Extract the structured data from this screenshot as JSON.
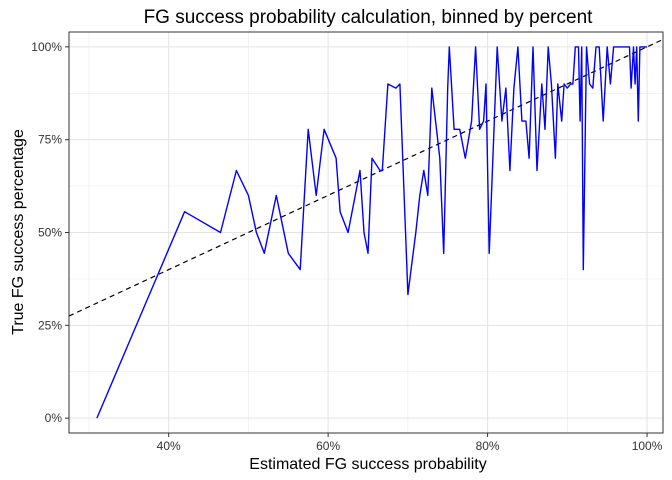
{
  "chart_data": {
    "type": "line",
    "title": "FG success probability calculation, binned by percent",
    "xlabel": "Estimated FG success probability",
    "ylabel": "True FG success percentage",
    "xlim": [
      0.275,
      1.02
    ],
    "ylim": [
      -0.04,
      1.04
    ],
    "x_ticks": [
      0.4,
      0.6,
      0.8,
      1.0
    ],
    "x_tick_labels": [
      "40%",
      "60%",
      "80%",
      "100%"
    ],
    "y_ticks": [
      0,
      0.25,
      0.5,
      0.75,
      1.0
    ],
    "y_tick_labels": [
      "0%",
      "25%",
      "50%",
      "75%",
      "100%"
    ],
    "grid": true,
    "reference_line": {
      "style": "dashed",
      "color": "#000000",
      "from": [
        0.275,
        0.275
      ],
      "to": [
        1.02,
        1.02
      ]
    },
    "series": [
      {
        "color": "#0000ff",
        "points": [
          [
            0.31,
            0.0
          ],
          [
            0.42,
            0.556
          ],
          [
            0.465,
            0.5
          ],
          [
            0.485,
            0.667
          ],
          [
            0.5,
            0.6
          ],
          [
            0.51,
            0.5
          ],
          [
            0.52,
            0.444
          ],
          [
            0.535,
            0.6
          ],
          [
            0.55,
            0.444
          ],
          [
            0.565,
            0.4
          ],
          [
            0.575,
            0.778
          ],
          [
            0.585,
            0.6
          ],
          [
            0.595,
            0.778
          ],
          [
            0.61,
            0.7
          ],
          [
            0.615,
            0.556
          ],
          [
            0.625,
            0.5
          ],
          [
            0.64,
            0.667
          ],
          [
            0.645,
            0.5
          ],
          [
            0.65,
            0.444
          ],
          [
            0.655,
            0.7
          ],
          [
            0.665,
            0.667
          ],
          [
            0.668,
            0.667
          ],
          [
            0.675,
            0.9
          ],
          [
            0.685,
            0.889
          ],
          [
            0.69,
            0.9
          ],
          [
            0.7,
            0.333
          ],
          [
            0.71,
            0.5
          ],
          [
            0.715,
            0.6
          ],
          [
            0.72,
            0.667
          ],
          [
            0.725,
            0.6
          ],
          [
            0.73,
            0.889
          ],
          [
            0.74,
            0.7
          ],
          [
            0.745,
            0.444
          ],
          [
            0.75,
            0.889
          ],
          [
            0.752,
            1.0
          ],
          [
            0.758,
            0.778
          ],
          [
            0.765,
            0.778
          ],
          [
            0.772,
            0.7
          ],
          [
            0.78,
            0.8
          ],
          [
            0.785,
            1.0
          ],
          [
            0.79,
            0.778
          ],
          [
            0.795,
            0.8
          ],
          [
            0.798,
            0.9
          ],
          [
            0.802,
            0.444
          ],
          [
            0.808,
            0.778
          ],
          [
            0.812,
            1.0
          ],
          [
            0.818,
            0.8
          ],
          [
            0.823,
            0.889
          ],
          [
            0.828,
            0.667
          ],
          [
            0.833,
            0.889
          ],
          [
            0.838,
            1.0
          ],
          [
            0.843,
            0.8
          ],
          [
            0.848,
            0.8
          ],
          [
            0.852,
            0.7
          ],
          [
            0.857,
            1.0
          ],
          [
            0.862,
            0.667
          ],
          [
            0.868,
            0.9
          ],
          [
            0.872,
            0.778
          ],
          [
            0.876,
            1.0
          ],
          [
            0.88,
            0.9
          ],
          [
            0.885,
            0.7
          ],
          [
            0.888,
            0.9
          ],
          [
            0.893,
            0.8
          ],
          [
            0.896,
            0.9
          ],
          [
            0.9,
            0.889
          ],
          [
            0.904,
            0.9
          ],
          [
            0.907,
            0.9
          ],
          [
            0.91,
            1.0
          ],
          [
            0.914,
            1.0
          ],
          [
            0.916,
            0.8
          ],
          [
            0.918,
            1.0
          ],
          [
            0.92,
            0.4
          ],
          [
            0.924,
            1.0
          ],
          [
            0.928,
            0.9
          ],
          [
            0.932,
            0.889
          ],
          [
            0.936,
            1.0
          ],
          [
            0.94,
            1.0
          ],
          [
            0.945,
            0.8
          ],
          [
            0.95,
            1.0
          ],
          [
            0.954,
            0.9
          ],
          [
            0.958,
            1.0
          ],
          [
            0.965,
            1.0
          ],
          [
            0.97,
            1.0
          ],
          [
            0.975,
            1.0
          ],
          [
            0.978,
            1.0
          ],
          [
            0.98,
            0.889
          ],
          [
            0.983,
            1.0
          ],
          [
            0.985,
            0.9
          ],
          [
            0.987,
            1.0
          ],
          [
            0.989,
            0.8
          ],
          [
            0.991,
            1.0
          ],
          [
            0.995,
            1.0
          ],
          [
            1.0,
            1.0
          ]
        ]
      }
    ]
  }
}
